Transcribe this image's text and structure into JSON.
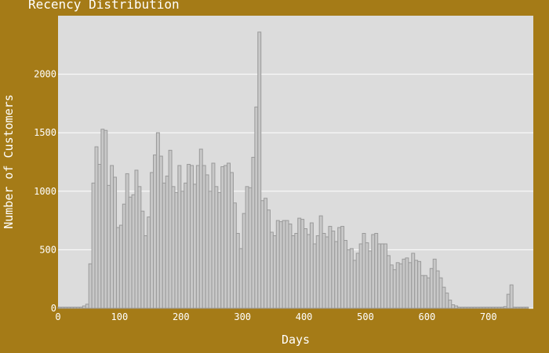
{
  "chart_data": {
    "type": "bar",
    "title": "Recency Distribution",
    "xlabel": "Days",
    "ylabel": "Number of Customers",
    "xlim": [
      0,
      773
    ],
    "ylim": [
      0,
      2500
    ],
    "xticks": [
      0,
      100,
      200,
      300,
      400,
      500,
      600,
      700
    ],
    "yticks": [
      0,
      500,
      1000,
      1500,
      2000
    ],
    "grid": true,
    "bin_width": 5,
    "bin_start": 0,
    "values": [
      10,
      10,
      10,
      10,
      10,
      10,
      10,
      10,
      20,
      35,
      380,
      1070,
      1380,
      1230,
      1530,
      1520,
      1050,
      1220,
      1120,
      690,
      710,
      890,
      1150,
      950,
      970,
      1180,
      1040,
      830,
      620,
      780,
      1160,
      1310,
      1500,
      1300,
      1070,
      1130,
      1350,
      1040,
      990,
      1220,
      1000,
      1070,
      1230,
      1220,
      1060,
      1220,
      1360,
      1220,
      1140,
      1000,
      1240,
      1040,
      990,
      1210,
      1220,
      1240,
      1160,
      900,
      640,
      510,
      810,
      1040,
      1030,
      1290,
      1720,
      2360,
      920,
      940,
      840,
      650,
      620,
      750,
      740,
      750,
      750,
      720,
      620,
      640,
      770,
      760,
      680,
      630,
      730,
      550,
      620,
      790,
      640,
      610,
      700,
      660,
      570,
      690,
      700,
      580,
      500,
      510,
      410,
      470,
      550,
      640,
      560,
      490,
      630,
      640,
      550,
      550,
      550,
      450,
      370,
      330,
      390,
      380,
      420,
      430,
      390,
      470,
      410,
      400,
      280,
      280,
      260,
      340,
      420,
      320,
      260,
      180,
      130,
      70,
      30,
      20,
      10,
      10,
      10,
      10,
      10,
      10,
      10,
      10,
      10,
      10,
      10,
      10,
      10,
      10,
      10,
      15,
      120,
      200,
      10,
      10,
      10,
      10,
      10
    ]
  }
}
